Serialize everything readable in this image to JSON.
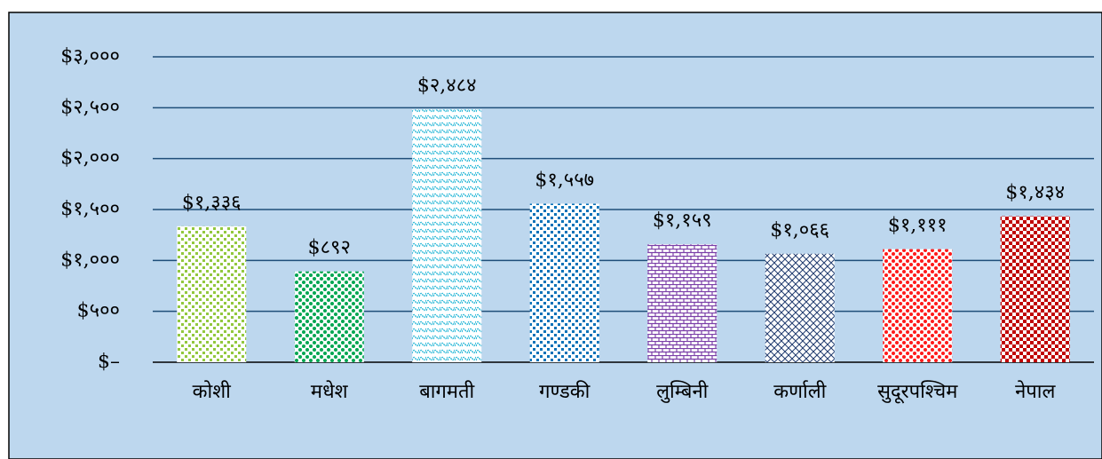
{
  "chart_data": {
    "type": "bar",
    "categories": [
      "कोशी",
      "मधेश",
      "बागमती",
      "गण्डकी",
      "लुम्बिनी",
      "कर्णाली",
      "सुदूरपश्चिम",
      "नेपाल"
    ],
    "values": [
      1336,
      892,
      2484,
      1557,
      1159,
      1066,
      1111,
      1434
    ],
    "value_labels": [
      "$१,३३६",
      "$८९२",
      "$२,४८४",
      "$१,५५७",
      "$१,१५९",
      "$१,०६६",
      "$१,१११",
      "$१,४३४"
    ],
    "colors": [
      "#92c83e",
      "#00a651",
      "#1fb5d6",
      "#0a72b8",
      "#7b3fa8",
      "#1f3a6e",
      "#ff1a1a",
      "#c00000"
    ],
    "ylim": [
      0,
      3000
    ],
    "yticks": [
      {
        "value": 0,
        "label": "$–"
      },
      {
        "value": 500,
        "label": "$५००"
      },
      {
        "value": 1000,
        "label": "$१,०००"
      },
      {
        "value": 1500,
        "label": "$१,५००"
      },
      {
        "value": 2000,
        "label": "$२,०००"
      },
      {
        "value": 2500,
        "label": "$२,५००"
      },
      {
        "value": 3000,
        "label": "$३,०००"
      }
    ],
    "grid": true
  }
}
